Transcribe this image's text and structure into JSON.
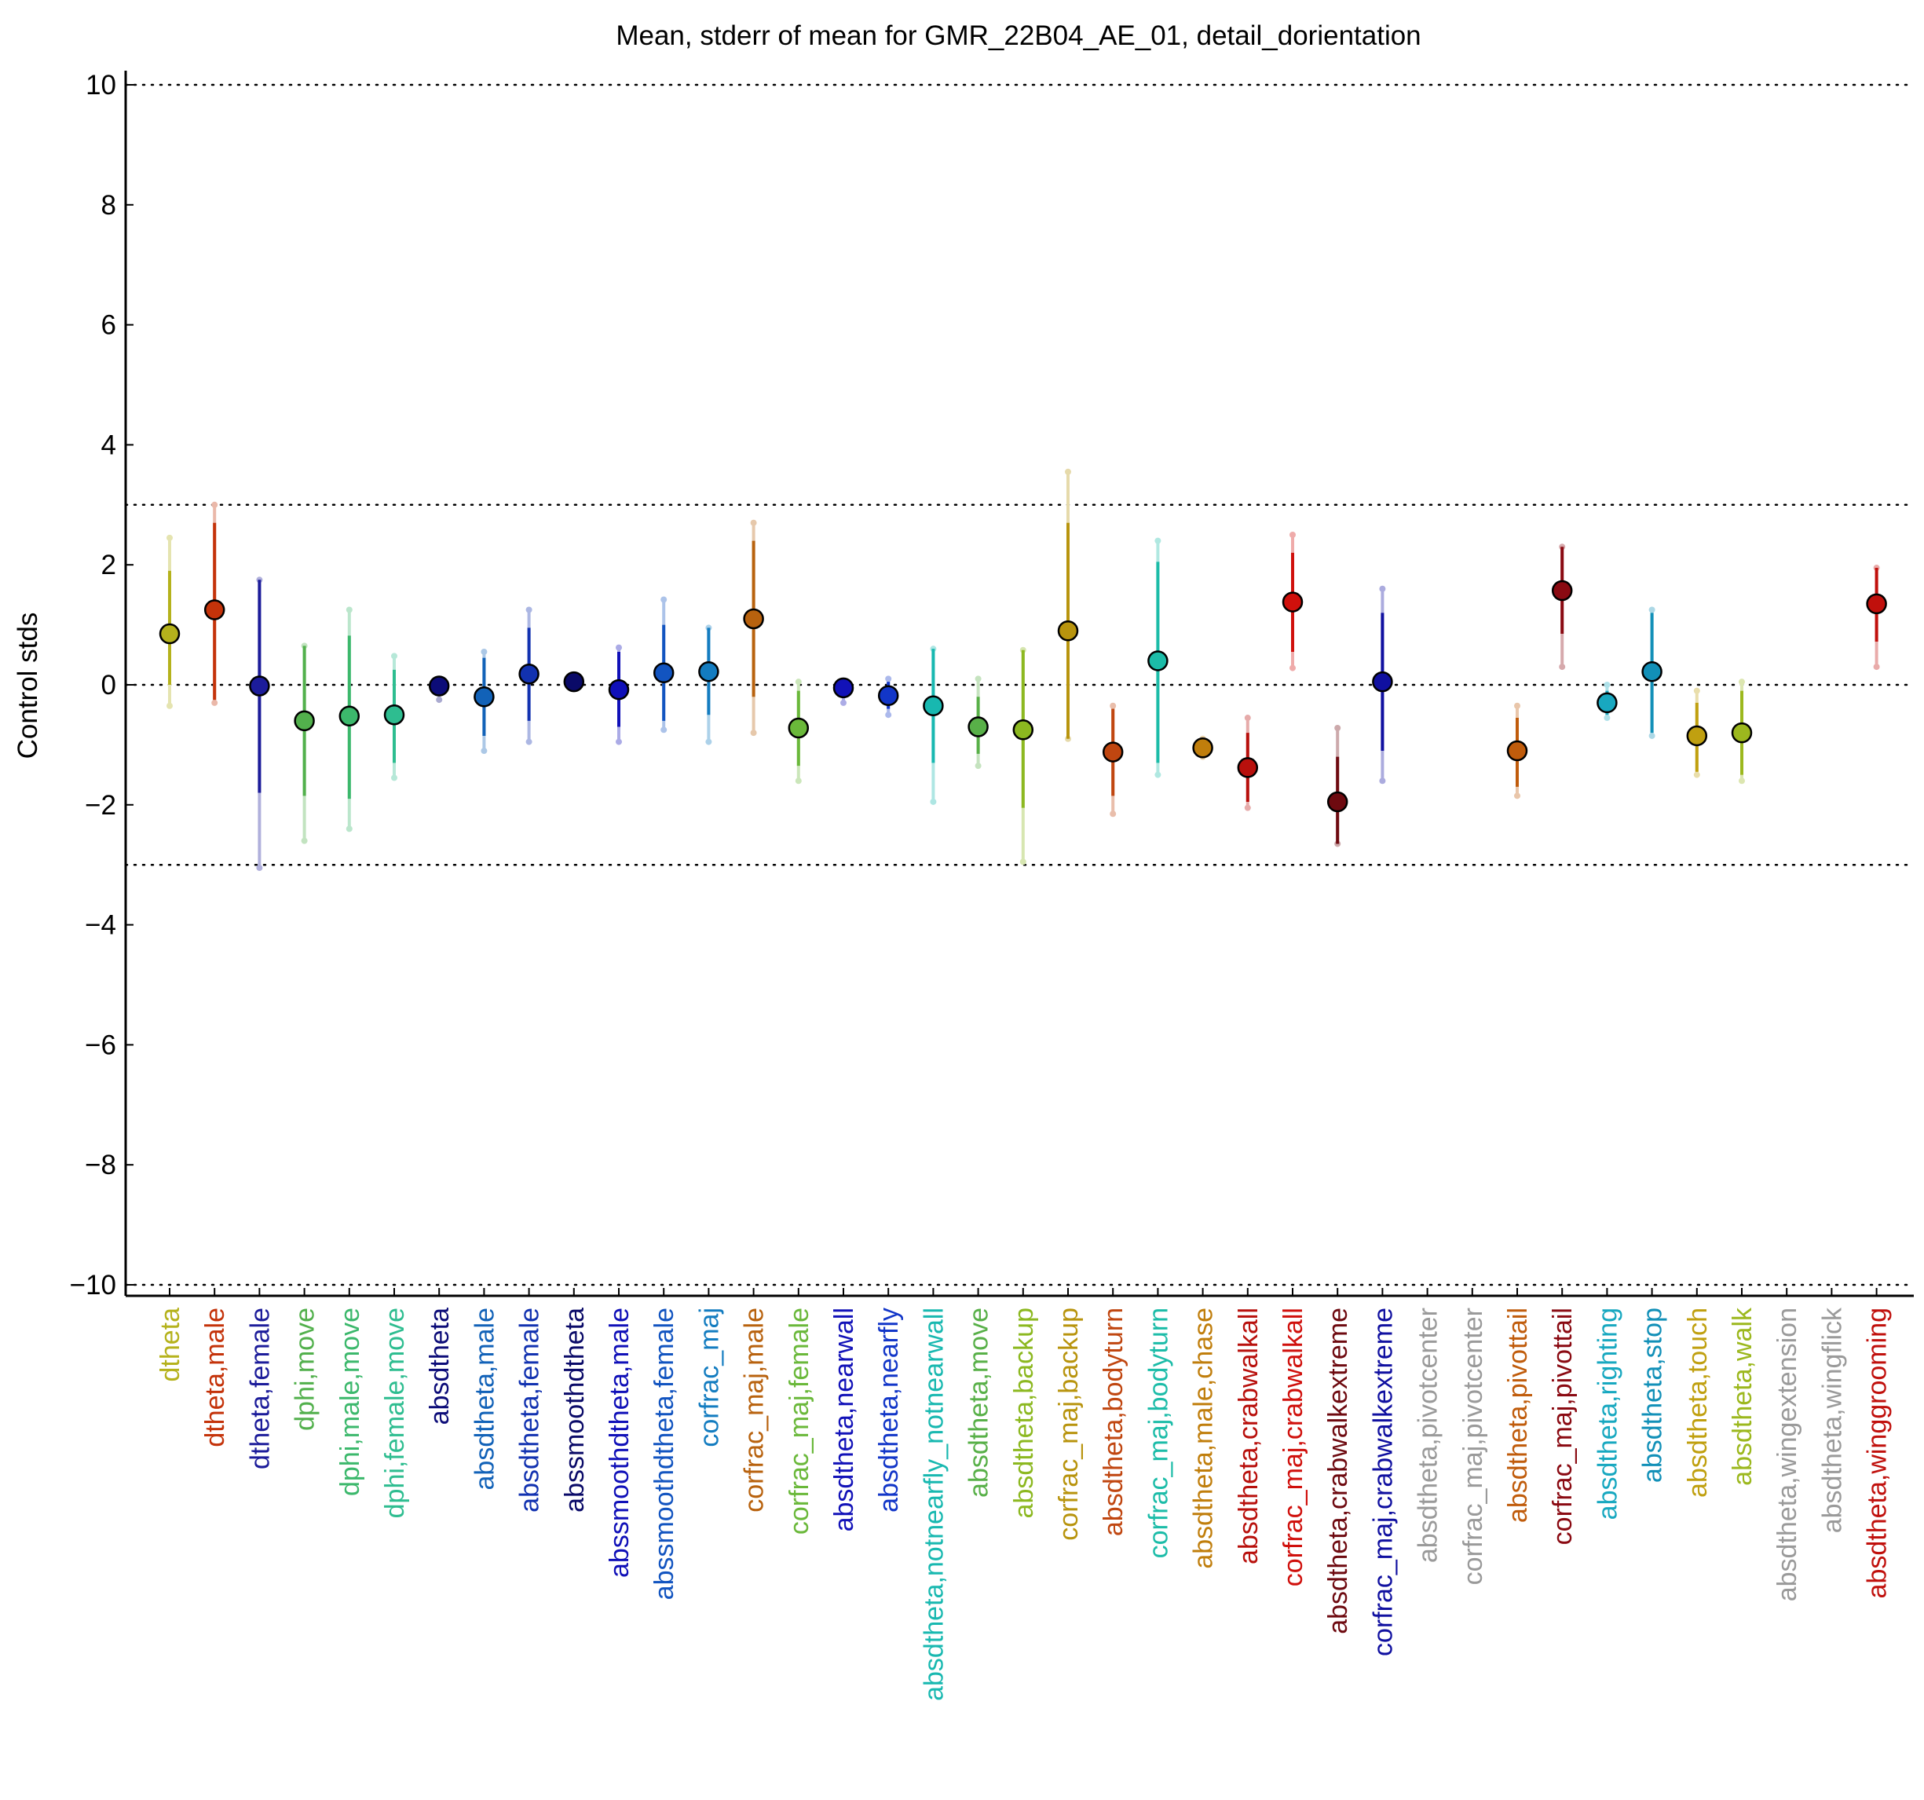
{
  "chart_data": {
    "type": "scatter",
    "title": "Mean, stderr of mean for GMR_22B04_AE_01, detail_dorientation",
    "xlabel": "",
    "ylabel": "Control stds",
    "ylim": [
      -10.2,
      10.2
    ],
    "yticks": [
      10,
      8,
      6,
      4,
      2,
      0,
      -2,
      -4,
      -6,
      -8,
      -10
    ],
    "ytick_labels": [
      "10",
      "8",
      "6",
      "4",
      "2",
      "0",
      "−2",
      "−4",
      "−6",
      "−8",
      "−10"
    ],
    "reference_lines": [
      10,
      3,
      0,
      -3,
      -10
    ],
    "reference_line_style": "dotted",
    "grid": false,
    "categories": [
      {
        "label": "dtheta",
        "color": "#b5b21c",
        "mean": 0.85,
        "se_low": 0.0,
        "se_high": 1.9,
        "range_low": -0.35,
        "range_high": 2.45
      },
      {
        "label": "dtheta,male",
        "color": "#c4330a",
        "mean": 1.25,
        "se_low": -0.25,
        "se_high": 2.7,
        "range_low": -0.3,
        "range_high": 3.0
      },
      {
        "label": "dtheta,female",
        "color": "#1c1c9a",
        "mean": -0.02,
        "se_low": -1.8,
        "se_high": 1.75,
        "range_low": -3.05,
        "range_high": 1.75
      },
      {
        "label": "dphi,move",
        "color": "#52b04c",
        "mean": -0.6,
        "se_low": -1.85,
        "se_high": 0.65,
        "range_low": -2.6,
        "range_high": 0.65
      },
      {
        "label": "dphi,male,move",
        "color": "#3cb86c",
        "mean": -0.52,
        "se_low": -1.9,
        "se_high": 0.82,
        "range_low": -2.4,
        "range_high": 1.25
      },
      {
        "label": "dphi,female,move",
        "color": "#2ebd90",
        "mean": -0.5,
        "se_low": -1.3,
        "se_high": 0.25,
        "range_low": -1.55,
        "range_high": 0.48
      },
      {
        "label": "absdtheta",
        "color": "#0c0c78",
        "mean": -0.02,
        "se_low": -0.15,
        "se_high": 0.1,
        "range_low": -0.25,
        "range_high": 0.1
      },
      {
        "label": "absdtheta,male",
        "color": "#1262b8",
        "mean": -0.2,
        "se_low": -0.85,
        "se_high": 0.45,
        "range_low": -1.1,
        "range_high": 0.55
      },
      {
        "label": "absdtheta,female",
        "color": "#1232b0",
        "mean": 0.18,
        "se_low": -0.6,
        "se_high": 0.95,
        "range_low": -0.95,
        "range_high": 1.25
      },
      {
        "label": "abssmoothdtheta",
        "color": "#0a0a68",
        "mean": 0.05,
        "se_low": 0.0,
        "se_high": 0.1,
        "range_low": -0.05,
        "range_high": 0.15
      },
      {
        "label": "abssmoothdtheta,male",
        "color": "#1010b8",
        "mean": -0.08,
        "se_low": -0.7,
        "se_high": 0.55,
        "range_low": -0.95,
        "range_high": 0.62
      },
      {
        "label": "abssmoothdtheta,female",
        "color": "#1254c0",
        "mean": 0.2,
        "se_low": -0.6,
        "se_high": 1.0,
        "range_low": -0.75,
        "range_high": 1.42
      },
      {
        "label": "corfrac_maj",
        "color": "#137cc0",
        "mean": 0.22,
        "se_low": -0.5,
        "se_high": 0.95,
        "range_low": -0.95,
        "range_high": 0.95
      },
      {
        "label": "corfrac_maj,male",
        "color": "#b8620e",
        "mean": 1.1,
        "se_low": -0.2,
        "se_high": 2.4,
        "range_low": -0.8,
        "range_high": 2.7
      },
      {
        "label": "corfrac_maj,female",
        "color": "#6ab83a",
        "mean": -0.72,
        "se_low": -1.35,
        "se_high": -0.1,
        "range_low": -1.6,
        "range_high": 0.05
      },
      {
        "label": "absdtheta,nearwall",
        "color": "#1212b8",
        "mean": -0.05,
        "se_low": -0.2,
        "se_high": 0.05,
        "range_low": -0.3,
        "range_high": 0.05
      },
      {
        "label": "absdtheta,nearfly",
        "color": "#1236c8",
        "mean": -0.18,
        "se_low": -0.4,
        "se_high": 0.05,
        "range_low": -0.5,
        "range_high": 0.1
      },
      {
        "label": "absdtheta,notnearfly_notnearwall",
        "color": "#18b8b0",
        "mean": -0.35,
        "se_low": -1.3,
        "se_high": 0.6,
        "range_low": -1.95,
        "range_high": 0.6
      },
      {
        "label": "absdtheta,move",
        "color": "#58b048",
        "mean": -0.7,
        "se_low": -1.15,
        "se_high": -0.2,
        "range_low": -1.35,
        "range_high": 0.1
      },
      {
        "label": "absdtheta,backup",
        "color": "#8cb820",
        "mean": -0.75,
        "se_low": -2.05,
        "se_high": 0.58,
        "range_low": -2.95,
        "range_high": 0.58
      },
      {
        "label": "corfrac_maj,backup",
        "color": "#b8940e",
        "mean": 0.9,
        "se_low": -0.9,
        "se_high": 2.7,
        "range_low": -0.9,
        "range_high": 3.55
      },
      {
        "label": "absdtheta,bodyturn",
        "color": "#c04610",
        "mean": -1.12,
        "se_low": -1.85,
        "se_high": -0.4,
        "range_low": -2.15,
        "range_high": -0.35
      },
      {
        "label": "corfrac_maj,bodyturn",
        "color": "#1cbca8",
        "mean": 0.4,
        "se_low": -1.3,
        "se_high": 2.05,
        "range_low": -1.5,
        "range_high": 2.4
      },
      {
        "label": "absdtheta,male,chase",
        "color": "#c07e0c",
        "mean": -1.05,
        "se_low": -1.15,
        "se_high": -0.95,
        "range_low": -1.2,
        "range_high": -0.9
      },
      {
        "label": "absdtheta,crabwalkall",
        "color": "#b8100c",
        "mean": -1.38,
        "se_low": -1.95,
        "se_high": -0.8,
        "range_low": -2.05,
        "range_high": -0.55
      },
      {
        "label": "corfrac_maj,crabwalkall",
        "color": "#d0100c",
        "mean": 1.38,
        "se_low": 0.55,
        "se_high": 2.2,
        "range_low": 0.28,
        "range_high": 2.5
      },
      {
        "label": "absdtheta,crabwalkextreme",
        "color": "#6e0a10",
        "mean": -1.95,
        "se_low": -2.65,
        "se_high": -1.2,
        "range_low": -2.65,
        "range_high": -0.72
      },
      {
        "label": "corfrac_maj,crabwalkextreme",
        "color": "#1010a0",
        "mean": 0.05,
        "se_low": -1.1,
        "se_high": 1.2,
        "range_low": -1.6,
        "range_high": 1.6
      },
      {
        "label": "absdtheta,pivotcenter",
        "color": "#9a9a9a",
        "mean": null
      },
      {
        "label": "corfrac_maj,pivotcenter",
        "color": "#9a9a9a",
        "mean": null
      },
      {
        "label": "absdtheta,pivottail",
        "color": "#c05c0c",
        "mean": -1.1,
        "se_low": -1.7,
        "se_high": -0.55,
        "range_low": -1.85,
        "range_high": -0.35
      },
      {
        "label": "corfrac_maj,pivottail",
        "color": "#8a0a12",
        "mean": 1.57,
        "se_low": 0.85,
        "se_high": 2.3,
        "range_low": 0.3,
        "range_high": 2.3
      },
      {
        "label": "absdtheta,righting",
        "color": "#18a8c0",
        "mean": -0.3,
        "se_low": -0.5,
        "se_high": -0.1,
        "range_low": -0.55,
        "range_high": 0.0
      },
      {
        "label": "absdtheta,stop",
        "color": "#1290b8",
        "mean": 0.22,
        "se_low": -0.8,
        "se_high": 1.2,
        "range_low": -0.85,
        "range_high": 1.25
      },
      {
        "label": "absdtheta,touch",
        "color": "#c0a010",
        "mean": -0.85,
        "se_low": -1.45,
        "se_high": -0.3,
        "range_low": -1.5,
        "range_high": -0.1
      },
      {
        "label": "absdtheta,walk",
        "color": "#9cb81e",
        "mean": -0.8,
        "se_low": -1.5,
        "se_high": -0.1,
        "range_low": -1.6,
        "range_high": 0.05
      },
      {
        "label": "absdtheta,wingextension",
        "color": "#9a9a9a",
        "mean": null
      },
      {
        "label": "absdtheta,wingflick",
        "color": "#9a9a9a",
        "mean": null
      },
      {
        "label": "absdtheta,winggrooming",
        "color": "#c0100c",
        "mean": 1.35,
        "se_low": 0.72,
        "se_high": 1.95,
        "range_low": 0.3,
        "range_high": 1.95
      }
    ]
  }
}
